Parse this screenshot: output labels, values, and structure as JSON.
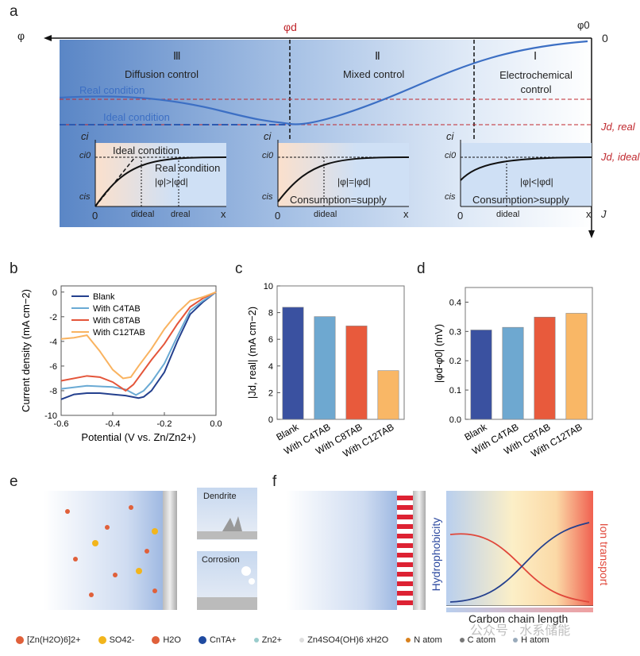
{
  "panels": {
    "a": "a",
    "b": "b",
    "c": "c",
    "d": "d",
    "e": "e",
    "f": "f"
  },
  "panel_a": {
    "phi": "φ",
    "phi_d": "φd",
    "phi_0": "φ0",
    "zero": "0",
    "regions": [
      {
        "numeral": "Ⅲ",
        "label": "Diffusion control"
      },
      {
        "numeral": "Ⅱ",
        "label": "Mixed control"
      },
      {
        "numeral": "Ⅰ",
        "label": "Electrochemical control"
      }
    ],
    "real_condition": "Real condition",
    "ideal_condition": "Ideal condition",
    "j_d_real": "Jd, real",
    "j_d_ideal": "Jd, ideal",
    "j": "J",
    "insets": [
      {
        "ci": "ci",
        "ci0": "ci0",
        "cis": "cis",
        "origin": "0",
        "x": "x",
        "ideal": "Ideal condition",
        "real": "Real condition",
        "relation": "|φ|>|φd|",
        "d1": "dideal",
        "d2": "dreal"
      },
      {
        "ci": "ci",
        "ci0": "ci0",
        "cis": "cis",
        "origin": "0",
        "x": "x",
        "relation": "|φ|=|φd|",
        "balance": "Consumption=supply",
        "d1": "dideal"
      },
      {
        "ci": "ci",
        "ci0": "ci0",
        "cis": "cis",
        "origin": "0",
        "x": "x",
        "relation": "|φ|<|φd|",
        "balance": "Consumption>supply",
        "d1": "dideal"
      }
    ]
  },
  "chart_data": [
    {
      "type": "line",
      "xlabel": "Potential (V vs. Zn/Zn2+)",
      "ylabel": "Current density (mA cm−2)",
      "xlim": [
        -0.6,
        0.0
      ],
      "ylim": [
        -10,
        0.5
      ],
      "xticks": [
        "-0.6",
        "-0.4",
        "-0.2",
        "0.0"
      ],
      "yticks": [
        "0",
        "-2",
        "-4",
        "-6",
        "-8",
        "-10"
      ],
      "legend_position": "top-left",
      "series": [
        {
          "name": "Blank",
          "color": "#24408e",
          "points": [
            [
              -0.6,
              -8.7
            ],
            [
              -0.55,
              -8.3
            ],
            [
              -0.5,
              -8.2
            ],
            [
              -0.45,
              -8.2
            ],
            [
              -0.4,
              -8.3
            ],
            [
              -0.35,
              -8.4
            ],
            [
              -0.3,
              -8.6
            ],
            [
              -0.28,
              -8.5
            ],
            [
              -0.25,
              -8.0
            ],
            [
              -0.2,
              -6.5
            ],
            [
              -0.15,
              -4.0
            ],
            [
              -0.1,
              -1.8
            ],
            [
              -0.05,
              -0.8
            ],
            [
              0,
              0
            ]
          ]
        },
        {
          "name": "With C4TAB",
          "color": "#6aaad4",
          "points": [
            [
              -0.6,
              -7.85
            ],
            [
              -0.5,
              -7.6
            ],
            [
              -0.4,
              -7.7
            ],
            [
              -0.35,
              -7.9
            ],
            [
              -0.31,
              -8.35
            ],
            [
              -0.28,
              -8.0
            ],
            [
              -0.25,
              -7.3
            ],
            [
              -0.2,
              -5.8
            ],
            [
              -0.15,
              -3.6
            ],
            [
              -0.1,
              -1.5
            ],
            [
              -0.05,
              -0.7
            ],
            [
              0,
              0
            ]
          ]
        },
        {
          "name": "With C8TAB",
          "color": "#e4553a",
          "points": [
            [
              -0.6,
              -7.2
            ],
            [
              -0.5,
              -6.8
            ],
            [
              -0.45,
              -6.9
            ],
            [
              -0.4,
              -7.3
            ],
            [
              -0.35,
              -8.0
            ],
            [
              -0.32,
              -7.5
            ],
            [
              -0.25,
              -5.5
            ],
            [
              -0.2,
              -4.2
            ],
            [
              -0.15,
              -2.6
            ],
            [
              -0.1,
              -1.2
            ],
            [
              -0.05,
              -0.5
            ],
            [
              0,
              0
            ]
          ]
        },
        {
          "name": "With C12TAB",
          "color": "#f9b360",
          "points": [
            [
              -0.6,
              -3.8
            ],
            [
              -0.55,
              -3.7
            ],
            [
              -0.5,
              -3.5
            ],
            [
              -0.45,
              -4.8
            ],
            [
              -0.4,
              -6.3
            ],
            [
              -0.36,
              -7.0
            ],
            [
              -0.33,
              -6.9
            ],
            [
              -0.3,
              -6.0
            ],
            [
              -0.25,
              -4.6
            ],
            [
              -0.2,
              -3.0
            ],
            [
              -0.15,
              -1.7
            ],
            [
              -0.1,
              -0.7
            ],
            [
              -0.05,
              -0.4
            ],
            [
              0,
              0
            ]
          ]
        }
      ]
    },
    {
      "type": "bar",
      "categories": [
        "Blank",
        "With C4TAB",
        "With C8TAB",
        "With C12TAB"
      ],
      "values": [
        8.4,
        7.7,
        7.0,
        3.65
      ],
      "colors": [
        "#3a51a0",
        "#6ea8d0",
        "#e85a3c",
        "#f9b766"
      ],
      "ylabel": "|Jd, real| (mA cm−2)",
      "ylim": [
        0,
        10
      ],
      "yticks": [
        "0",
        "2",
        "4",
        "6",
        "8",
        "10"
      ]
    },
    {
      "type": "bar",
      "categories": [
        "Blank",
        "With C4TAB",
        "With C8TAB",
        "With C12TAB"
      ],
      "values": [
        0.305,
        0.314,
        0.349,
        0.362
      ],
      "colors": [
        "#3a51a0",
        "#6ea8d0",
        "#e85a3c",
        "#f9b766"
      ],
      "ylabel": "|φd-φ0| (mV)",
      "ylim": [
        0,
        0.45
      ],
      "yticks": [
        "0.0",
        "0.1",
        "0.2",
        "0.3",
        "0.4"
      ]
    }
  ],
  "panel_e": {
    "dendrite": "Dendrite",
    "corrosion": "Corrosion"
  },
  "panel_f": {
    "hydrophobicity": "Hydrophobicity",
    "ion_transport": "Ion transport",
    "carbon_chain": "Carbon chain length"
  },
  "legend": [
    "[Zn(H2O)6]2+",
    "SO42-",
    "H2O",
    "CnTA+",
    "Zn2+",
    "Zn4SO4(OH)6 xH2O",
    "N atom",
    "C atom",
    "H atom"
  ],
  "watermark": "公众号 · 水系储能"
}
